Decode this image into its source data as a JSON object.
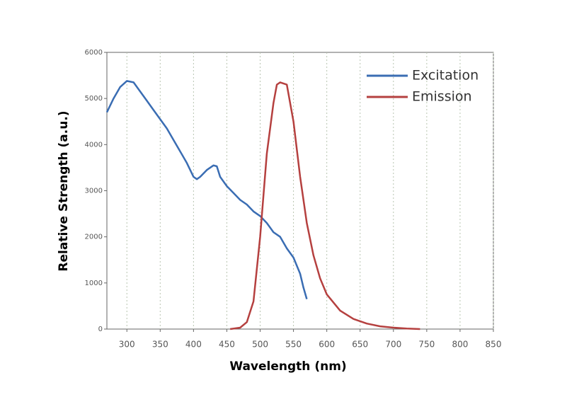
{
  "chart_data": {
    "type": "line",
    "x_label": "Wavelength (nm)",
    "y_label": "Relative Strength (a.u.)",
    "xlim": [
      270,
      850
    ],
    "ylim": [
      0,
      6000
    ],
    "xticks": [
      300,
      350,
      400,
      450,
      500,
      550,
      600,
      650,
      700,
      750,
      800,
      850
    ],
    "yticks": [
      0,
      1000,
      2000,
      3000,
      4000,
      5000,
      6000
    ],
    "grid": "x",
    "legend": "upper right",
    "series": [
      {
        "name": "Excitation",
        "color": "#3a6db3",
        "x": [
          270,
          280,
          290,
          300,
          310,
          320,
          330,
          340,
          350,
          360,
          370,
          380,
          390,
          400,
          405,
          410,
          420,
          430,
          435,
          440,
          450,
          460,
          470,
          480,
          490,
          500,
          510,
          520,
          530,
          540,
          550,
          560,
          565,
          570
        ],
        "values": [
          4700,
          5000,
          5250,
          5380,
          5350,
          5150,
          4950,
          4750,
          4550,
          4350,
          4100,
          3850,
          3600,
          3300,
          3250,
          3300,
          3450,
          3550,
          3530,
          3300,
          3100,
          2950,
          2800,
          2700,
          2550,
          2450,
          2300,
          2100,
          2000,
          1750,
          1550,
          1200,
          900,
          650
        ]
      },
      {
        "name": "Emission",
        "color": "#b5403f",
        "x": [
          455,
          470,
          480,
          490,
          500,
          510,
          520,
          525,
          530,
          540,
          550,
          560,
          570,
          580,
          590,
          600,
          620,
          640,
          660,
          680,
          700,
          720,
          740
        ],
        "values": [
          0,
          30,
          150,
          600,
          2000,
          3800,
          4900,
          5300,
          5350,
          5300,
          4500,
          3300,
          2300,
          1600,
          1100,
          750,
          400,
          220,
          120,
          60,
          30,
          10,
          0
        ]
      }
    ]
  }
}
